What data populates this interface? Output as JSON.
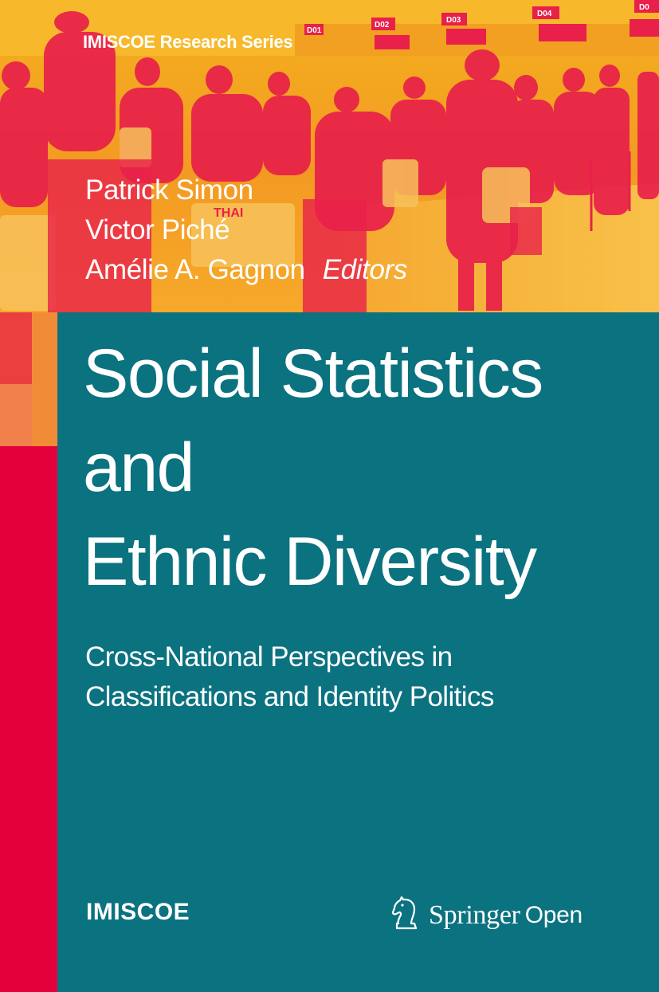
{
  "series": "IMISCOE Research Series",
  "editors": [
    "Patrick Simon",
    "Victor Piché",
    "Amélie A. Gagnon"
  ],
  "editors_role": "Editors",
  "title_lines": [
    "Social Statistics",
    "and",
    "Ethnic Diversity"
  ],
  "subtitle_lines": [
    "Cross-National Perspectives in",
    "Classifications and Identity Politics"
  ],
  "publisher_left": "IMISCOE",
  "publisher_right": {
    "brand": "Springer",
    "suffix": "Open",
    "icon": "horse-knight-icon"
  },
  "photo_signs": [
    "D01",
    "D02",
    "D03",
    "D04",
    "D0"
  ],
  "photo_airline": "THAI",
  "colors": {
    "teal": "#0b7280",
    "red": "#e3003b",
    "photo_orange": "#f59b1d",
    "photo_red": "#e8204a"
  }
}
